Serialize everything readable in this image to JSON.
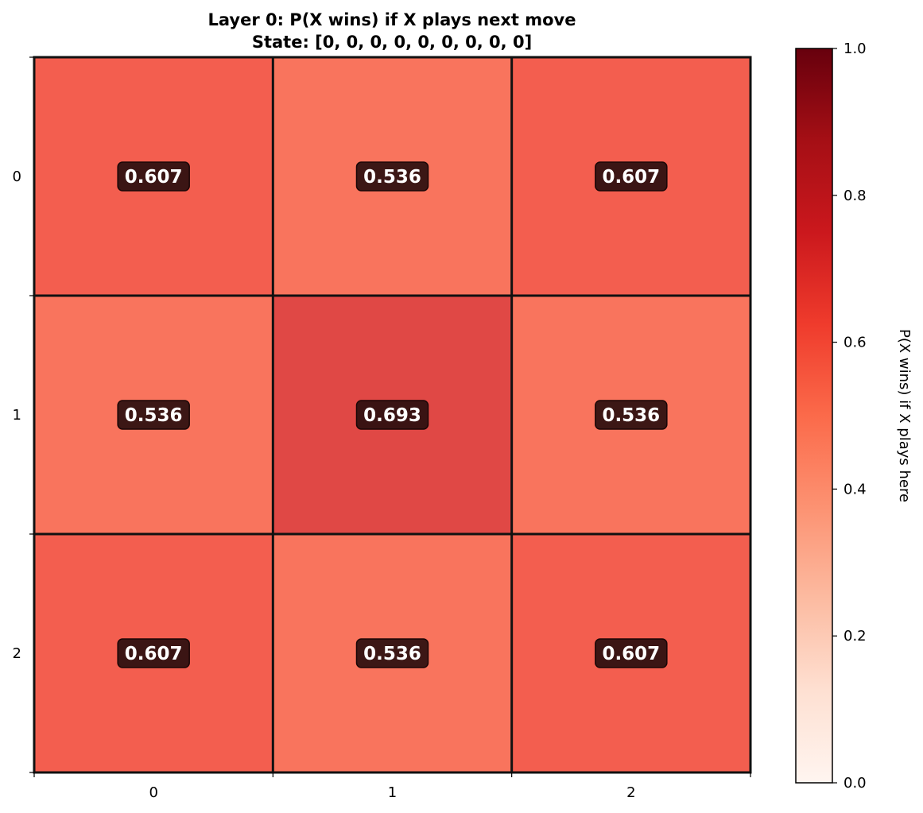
{
  "chart_data": {
    "type": "heatmap",
    "title": "Layer 0: P(X wins) if X plays next move",
    "subtitle": "State: [0, 0, 0, 0, 0, 0, 0, 0, 0]",
    "x_ticks": [
      "0",
      "1",
      "2"
    ],
    "y_ticks": [
      "0",
      "1",
      "2"
    ],
    "values": [
      [
        0.607,
        0.536,
        0.607
      ],
      [
        0.536,
        0.693,
        0.536
      ],
      [
        0.607,
        0.536,
        0.607
      ]
    ],
    "value_labels": [
      [
        "0.607",
        "0.536",
        "0.607"
      ],
      [
        "0.536",
        "0.693",
        "0.536"
      ],
      [
        "0.607",
        "0.536",
        "0.607"
      ]
    ],
    "colormap": "Reds",
    "vmin": 0.0,
    "vmax": 1.0,
    "colorbar": {
      "label": "P(X wins) if X plays here",
      "ticks": [
        "0.0",
        "0.2",
        "0.4",
        "0.6",
        "0.8",
        "1.0"
      ],
      "tick_values": [
        0.0,
        0.2,
        0.4,
        0.6,
        0.8,
        1.0
      ],
      "position": "right"
    },
    "colors": {
      "label_box": "#2b0f0f",
      "grid_line": "#111111"
    }
  }
}
